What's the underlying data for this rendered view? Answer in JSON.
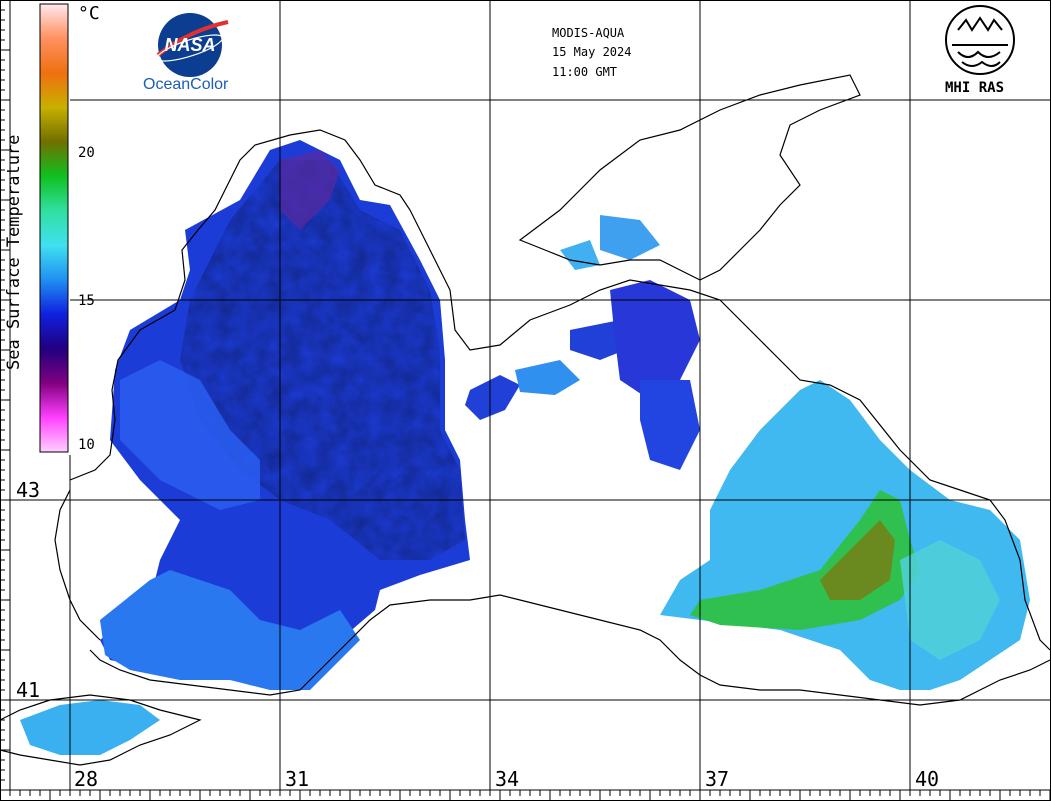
{
  "header": {
    "sensor": "MODIS-AQUA",
    "date": "15 May 2024",
    "time": "11:00 GMT"
  },
  "logos": {
    "nasa_wordmark": "NASA",
    "nasa_caption": "OceanColor",
    "mhi_caption": "MHI RAS"
  },
  "colorbar": {
    "title": "Sea Surface Temperature",
    "unit": "°C",
    "ticks": [
      "20",
      "15",
      "10"
    ],
    "colors": [
      "#ffe8ee",
      "#ff9060",
      "#f07010",
      "#c8b000",
      "#707000",
      "#10c020",
      "#30e0a0",
      "#40e0f0",
      "#2090f0",
      "#1020e0",
      "#200080",
      "#800080",
      "#ff40ff",
      "#ffd0ff"
    ]
  },
  "grid": {
    "lat_labels": [
      "43",
      "41"
    ],
    "lon_labels": [
      "28",
      "31",
      "34",
      "37",
      "40"
    ]
  }
}
